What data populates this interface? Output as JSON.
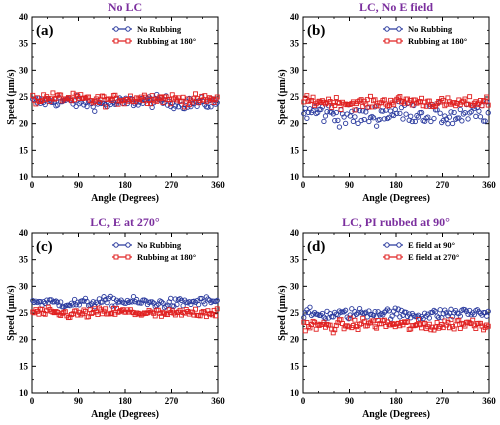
{
  "colors": {
    "title": "#7b2f9e",
    "series1": "#2a3a9e",
    "series2": "#e02020"
  },
  "chart_data": [
    {
      "type": "scatter",
      "panel_label": "(a)",
      "title": "No LC",
      "xlabel": "Angle (Degrees)",
      "ylabel": "Speed (μm/s)",
      "xlim": [
        0,
        360
      ],
      "ylim": [
        10,
        40
      ],
      "xticks": [
        "0",
        "90",
        "180",
        "270",
        "360"
      ],
      "yticks": [
        "10",
        "15",
        "20",
        "25",
        "30",
        "35",
        "40"
      ],
      "grid": false,
      "legend_position": "top-right",
      "series": [
        {
          "name": "No Rubbing",
          "marker": "circle",
          "mean": 24.0,
          "spread": 1.0
        },
        {
          "name": "Rubbing at 180°",
          "marker": "square",
          "mean": 24.6,
          "spread": 0.9
        }
      ]
    },
    {
      "type": "scatter",
      "panel_label": "(b)",
      "title": "LC, No E field",
      "xlabel": "Angle (Degrees)",
      "ylabel": "Speed (μm/s)",
      "xlim": [
        0,
        360
      ],
      "ylim": [
        10,
        40
      ],
      "xticks": [
        "0",
        "90",
        "180",
        "270",
        "360"
      ],
      "yticks": [
        "10",
        "15",
        "20",
        "25",
        "30",
        "35",
        "40"
      ],
      "grid": false,
      "legend_position": "top-right",
      "series": [
        {
          "name": "No Rubbing",
          "marker": "circle",
          "mean": 21.8,
          "spread": 1.8
        },
        {
          "name": "Rubbing at 180°",
          "marker": "square",
          "mean": 24.0,
          "spread": 0.9
        }
      ]
    },
    {
      "type": "scatter",
      "panel_label": "(c)",
      "title": "LC, E at 270°",
      "xlabel": "Angle (Degrees)",
      "ylabel": "Speed (μm/s)",
      "xlim": [
        0,
        360
      ],
      "ylim": [
        10,
        40
      ],
      "xticks": [
        "0",
        "90",
        "180",
        "270",
        "360"
      ],
      "yticks": [
        "10",
        "15",
        "20",
        "25",
        "30",
        "35",
        "40"
      ],
      "grid": false,
      "legend_position": "top-right",
      "series": [
        {
          "name": "No Rubbing",
          "marker": "circle",
          "mean": 27.0,
          "spread": 0.8
        },
        {
          "name": "Rubbing at 180°",
          "marker": "square",
          "mean": 25.0,
          "spread": 0.8
        }
      ]
    },
    {
      "type": "scatter",
      "panel_label": "(d)",
      "title": "LC, PI rubbed at 90°",
      "xlabel": "Angle (Degrees)",
      "ylabel": "Speed (μm/s)",
      "xlim": [
        0,
        360
      ],
      "ylim": [
        10,
        40
      ],
      "xticks": [
        "0",
        "90",
        "180",
        "270",
        "360"
      ],
      "yticks": [
        "10",
        "15",
        "20",
        "25",
        "30",
        "35",
        "40"
      ],
      "grid": false,
      "legend_position": "top-right",
      "series": [
        {
          "name": "E field at 90°",
          "marker": "circle",
          "mean": 24.9,
          "spread": 0.9
        },
        {
          "name": "E field at 270°",
          "marker": "square",
          "mean": 22.8,
          "spread": 1.0
        }
      ]
    }
  ]
}
